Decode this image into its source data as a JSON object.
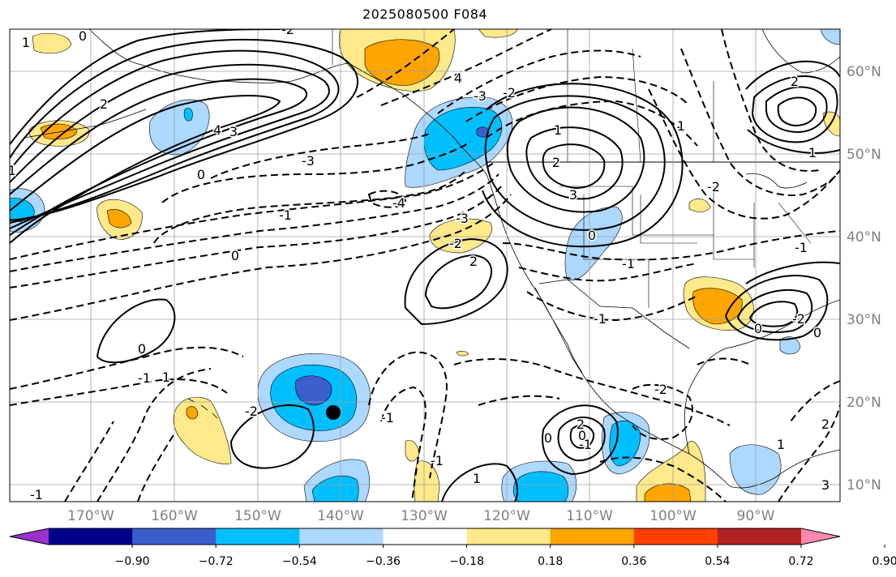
{
  "title": "2025080500 F084",
  "map": {
    "lon_labels": [
      "170°W",
      "160°W",
      "150°W",
      "140°W",
      "130°W",
      "120°W",
      "110°W",
      "100°W",
      "90°W"
    ],
    "lat_labels": [
      "60°N",
      "50°N",
      "40°N",
      "30°N",
      "20°N",
      "10°N"
    ],
    "contour_labels": [
      "1",
      "0",
      "2",
      "3",
      "4",
      "-1",
      "-2",
      "-3",
      "-4",
      "0",
      "1",
      "2",
      "3",
      "4",
      "-2",
      "-3",
      "0",
      "-1",
      "2",
      "1",
      "0",
      "-1",
      "-1",
      "0",
      "-2",
      "2",
      "-2",
      "0",
      "-1",
      "1",
      "-2",
      "-1",
      "-1",
      "1",
      "0",
      "-1",
      "0",
      "-2",
      "2",
      "-3",
      "-2",
      "1",
      "-1",
      "0",
      "1",
      "2",
      "3",
      "-1"
    ],
    "storm_marker": "tropical-cyclone-position",
    "colors": {
      "positive_contour": "#000000",
      "negative_contour": "#000000",
      "coast": "#000000",
      "grid": "#a0a0a0"
    }
  },
  "colorbar": {
    "colors": [
      "#9932cc",
      "#00008b",
      "#3a5fcd",
      "#00bfff",
      "#add8ff",
      "#ffffff",
      "#ffe98a",
      "#ffa500",
      "#ff4000",
      "#b22222",
      "#ff88b0"
    ],
    "tick_labels": [
      "−0.90",
      "−0.72",
      "−0.54",
      "−0.36",
      "−0.18",
      "0.18",
      "0.36",
      "0.54",
      "0.72",
      "0.90"
    ]
  }
}
